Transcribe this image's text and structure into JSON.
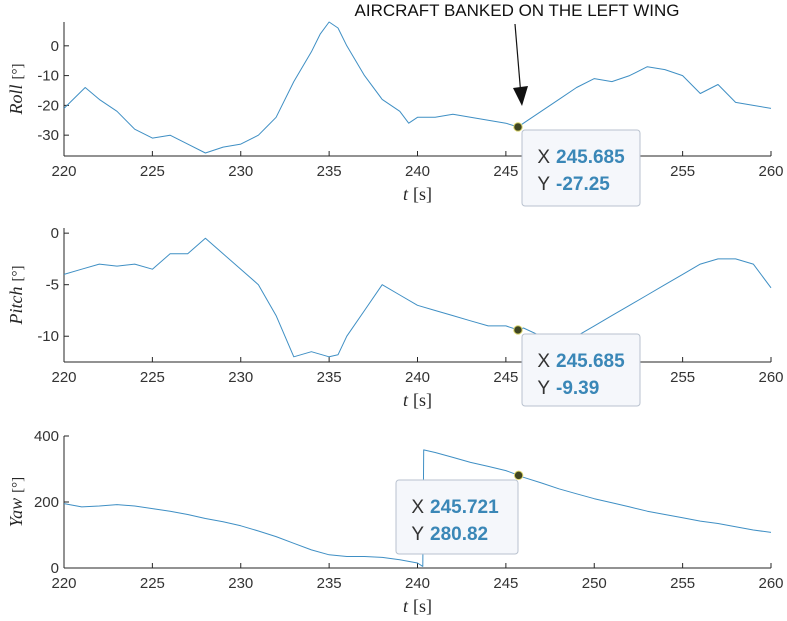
{
  "chart_data": [
    {
      "type": "line",
      "id": "roll",
      "ylabel": "Roll",
      "yunit": "[°]",
      "xlabel": "t",
      "xunit": "[s]",
      "xlim": [
        220,
        260
      ],
      "ylim": [
        -37,
        8
      ],
      "xticks": [
        220,
        225,
        230,
        235,
        240,
        245,
        250,
        255,
        260
      ],
      "yticks": [
        -30,
        -20,
        -10,
        0
      ],
      "series_color": "#3f8fc4",
      "x": [
        220,
        221.2,
        222,
        223,
        224,
        225,
        226,
        227,
        228,
        229,
        230,
        231,
        232,
        233,
        234,
        234.5,
        235,
        235.5,
        236,
        237,
        238,
        239,
        239.5,
        240,
        241,
        242,
        243,
        244,
        245,
        245.685,
        246,
        247,
        248,
        249,
        250,
        251,
        252,
        253,
        254,
        255,
        256,
        257,
        258,
        259,
        260
      ],
      "y": [
        -21,
        -14,
        -18,
        -22,
        -28,
        -31,
        -30,
        -33,
        -36,
        -34,
        -33,
        -30,
        -24,
        -12,
        -2,
        4,
        8,
        6,
        0,
        -10,
        -18,
        -22,
        -26,
        -24,
        -24,
        -23,
        -24,
        -25,
        -26,
        -27.25,
        -26,
        -22,
        -18,
        -14,
        -11,
        -12,
        -10,
        -7,
        -8,
        -10,
        -16,
        -13,
        -19,
        -20,
        -21
      ],
      "annotation": "AIRCRAFT BANKED ON THE LEFT WING",
      "datatip": {
        "x_label": "X",
        "x_value": "245.685",
        "y_label": "Y",
        "y_value": "-27.25",
        "x": 245.685,
        "y": -27.25
      }
    },
    {
      "type": "line",
      "id": "pitch",
      "ylabel": "Pitch",
      "yunit": "[°]",
      "xlabel": "t",
      "xunit": "[s]",
      "xlim": [
        220,
        260
      ],
      "ylim": [
        -12.5,
        0.5
      ],
      "xticks": [
        220,
        225,
        230,
        235,
        240,
        245,
        250,
        255,
        260
      ],
      "yticks": [
        -10,
        -5,
        0
      ],
      "series_color": "#3f8fc4",
      "x": [
        220,
        221,
        222,
        223,
        224,
        225,
        226,
        227,
        228,
        229,
        230,
        231,
        232,
        233,
        234,
        235,
        235.5,
        236,
        237,
        238,
        239,
        240,
        241,
        242,
        243,
        244,
        245,
        245.685,
        246,
        247,
        248,
        249,
        250,
        251,
        252,
        253,
        254,
        255,
        256,
        257,
        258,
        259,
        260
      ],
      "y": [
        -4,
        -3.5,
        -3,
        -3.2,
        -3,
        -3.5,
        -2,
        -2,
        -0.5,
        -2,
        -3.5,
        -5,
        -8,
        -12,
        -11.5,
        -12,
        -11.8,
        -10,
        -7.5,
        -5,
        -6,
        -7,
        -7.5,
        -8,
        -8.5,
        -9,
        -9,
        -9.39,
        -9.2,
        -10,
        -10.5,
        -10,
        -9,
        -8,
        -7,
        -6,
        -5,
        -4,
        -3,
        -2.5,
        -2.5,
        -3,
        -5.3
      ],
      "datatip": {
        "x_label": "X",
        "x_value": "245.685",
        "y_label": "Y",
        "y_value": "-9.39",
        "x": 245.685,
        "y": -9.39
      }
    },
    {
      "type": "line",
      "id": "yaw",
      "ylabel": "Yaw",
      "yunit": "[°]",
      "xlabel": "t",
      "xunit": "[s]",
      "xlim": [
        220,
        260
      ],
      "ylim": [
        0,
        400
      ],
      "xticks": [
        220,
        225,
        230,
        235,
        240,
        245,
        250,
        255,
        260
      ],
      "yticks": [
        0,
        200,
        400
      ],
      "series_color": "#3f8fc4",
      "x": [
        220,
        221,
        222,
        223,
        224,
        225,
        226,
        227,
        228,
        229,
        230,
        231,
        232,
        233,
        234,
        235,
        236,
        237,
        238,
        239,
        240,
        240.3,
        240.35,
        241,
        242,
        243,
        244,
        245,
        245.721,
        246,
        247,
        248,
        249,
        250,
        251,
        252,
        253,
        254,
        255,
        256,
        257,
        258,
        259,
        260
      ],
      "y": [
        195,
        185,
        188,
        192,
        188,
        180,
        172,
        162,
        150,
        140,
        128,
        112,
        95,
        75,
        55,
        40,
        35,
        35,
        32,
        25,
        15,
        5,
        358,
        350,
        335,
        320,
        308,
        295,
        280.82,
        275,
        258,
        240,
        225,
        210,
        198,
        185,
        172,
        162,
        152,
        142,
        135,
        125,
        115,
        108
      ],
      "datatip": {
        "x_label": "X",
        "x_value": "245.721",
        "y_label": "Y",
        "y_value": "280.82",
        "x": 245.721,
        "y": 280.82
      }
    }
  ]
}
